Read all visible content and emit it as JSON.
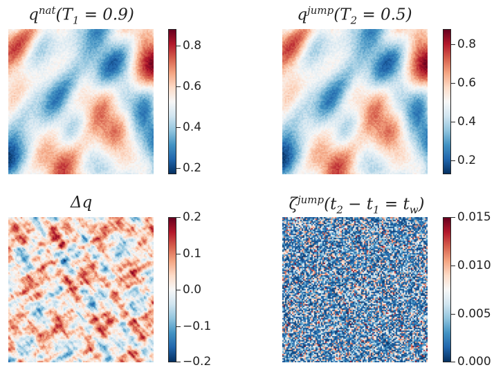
{
  "chart_data": [
    {
      "type": "heatmap",
      "title": "q^{nat}(T_1 = 0.9)",
      "title_html": "q<sup style=\"font-size:15px\">nat</sup>(<span>T</span><sub style=\"font-size:15px\">1</sub> = 0.9)",
      "colormap": "RdBu_r",
      "vmin": 0.17,
      "vmax": 0.88,
      "colorbar_ticks": [
        0.2,
        0.4,
        0.6,
        0.8
      ],
      "colorbar_tick_labels": [
        "0.2",
        "0.4",
        "0.6",
        "0.8"
      ],
      "field": "smooth",
      "seed": 11
    },
    {
      "type": "heatmap",
      "title": "q^{jump}(T_2 = 0.5)",
      "title_html": "q<sup style=\"font-size:15px\">jump</sup>(<span>T</span><sub style=\"font-size:15px\">2</sub> = 0.5)",
      "colormap": "RdBu_r",
      "vmin": 0.13,
      "vmax": 0.88,
      "colorbar_ticks": [
        0.2,
        0.4,
        0.6,
        0.8
      ],
      "colorbar_tick_labels": [
        "0.2",
        "0.4",
        "0.6",
        "0.8"
      ],
      "field": "smooth",
      "seed": 11
    },
    {
      "type": "heatmap",
      "title": "Δq",
      "title_html": "Δq",
      "colormap": "RdBu_r",
      "vmin": -0.2,
      "vmax": 0.2,
      "colorbar_ticks": [
        -0.2,
        -0.1,
        0.0,
        0.1,
        0.2
      ],
      "colorbar_tick_labels": [
        "−0.2",
        "−0.1",
        "0.0",
        "0.1",
        "0.2"
      ],
      "field": "fine",
      "seed": 23
    },
    {
      "type": "heatmap",
      "title": "ζ^{jump}(t_2 − t_1 = t_w)",
      "title_html": "ζ<sup style=\"font-size:15px\">jump</sup>(t<sub style=\"font-size:15px\">2</sub> − t<sub style=\"font-size:15px\">1</sub> = t<sub style=\"font-size:15px\">w</sub>)",
      "colormap": "RdBu_r",
      "vmin": 0.0,
      "vmax": 0.015,
      "colorbar_ticks": [
        0.0,
        0.005,
        0.01,
        0.015
      ],
      "colorbar_tick_labels": [
        "0.000",
        "0.005",
        "0.010",
        "0.015"
      ],
      "field": "noise",
      "seed": 37
    }
  ]
}
